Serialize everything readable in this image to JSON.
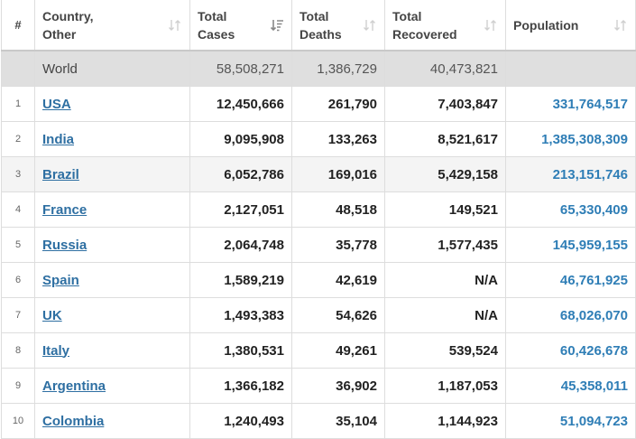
{
  "headers": {
    "num": "#",
    "country_line1": "Country,",
    "country_line2": "Other",
    "cases_line1": "Total",
    "cases_line2": "Cases",
    "deaths_line1": "Total",
    "deaths_line2": "Deaths",
    "recovered_line1": "Total",
    "recovered_line2": "Recovered",
    "population": "Population"
  },
  "world": {
    "label": "World",
    "total_cases": "58,508,271",
    "total_deaths": "1,386,729",
    "total_recovered": "40,473,821",
    "population": ""
  },
  "rows": [
    {
      "num": "1",
      "country": "USA",
      "total_cases": "12,450,666",
      "total_deaths": "261,790",
      "total_recovered": "7,403,847",
      "population": "331,764,517"
    },
    {
      "num": "2",
      "country": "India",
      "total_cases": "9,095,908",
      "total_deaths": "133,263",
      "total_recovered": "8,521,617",
      "population": "1,385,308,309"
    },
    {
      "num": "3",
      "country": "Brazil",
      "total_cases": "6,052,786",
      "total_deaths": "169,016",
      "total_recovered": "5,429,158",
      "population": "213,151,746"
    },
    {
      "num": "4",
      "country": "France",
      "total_cases": "2,127,051",
      "total_deaths": "48,518",
      "total_recovered": "149,521",
      "population": "65,330,409"
    },
    {
      "num": "5",
      "country": "Russia",
      "total_cases": "2,064,748",
      "total_deaths": "35,778",
      "total_recovered": "1,577,435",
      "population": "145,959,155"
    },
    {
      "num": "6",
      "country": "Spain",
      "total_cases": "1,589,219",
      "total_deaths": "42,619",
      "total_recovered": "N/A",
      "population": "46,761,925"
    },
    {
      "num": "7",
      "country": "UK",
      "total_cases": "1,493,383",
      "total_deaths": "54,626",
      "total_recovered": "N/A",
      "population": "68,026,070"
    },
    {
      "num": "8",
      "country": "Italy",
      "total_cases": "1,380,531",
      "total_deaths": "49,261",
      "total_recovered": "539,524",
      "population": "60,426,678"
    },
    {
      "num": "9",
      "country": "Argentina",
      "total_cases": "1,366,182",
      "total_deaths": "36,902",
      "total_recovered": "1,187,053",
      "population": "45,358,011"
    },
    {
      "num": "10",
      "country": "Colombia",
      "total_cases": "1,240,493",
      "total_deaths": "35,104",
      "total_recovered": "1,144,923",
      "population": "51,094,723"
    }
  ],
  "icons": {
    "sort_default": "sort-arrows-icon",
    "sort_active": "sort-descending-icon"
  },
  "colors": {
    "link": "#2e6fa2",
    "population": "#2f7eb6",
    "world_row_bg": "#dfdfdf",
    "highlight_row_bg": "#f4f4f4"
  }
}
